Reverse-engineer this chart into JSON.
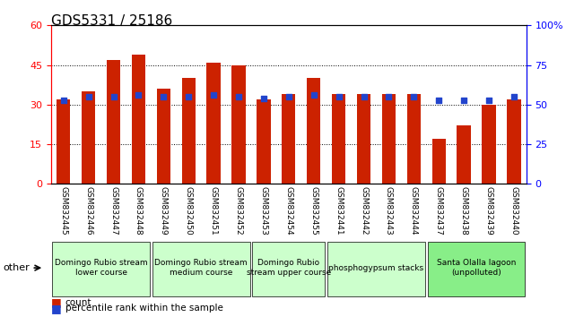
{
  "title": "GDS5331 / 25186",
  "samples": [
    "GSM832445",
    "GSM832446",
    "GSM832447",
    "GSM832448",
    "GSM832449",
    "GSM832450",
    "GSM832451",
    "GSM832452",
    "GSM832453",
    "GSM832454",
    "GSM832455",
    "GSM832441",
    "GSM832442",
    "GSM832443",
    "GSM832444",
    "GSM832437",
    "GSM832438",
    "GSM832439",
    "GSM832440"
  ],
  "counts": [
    32,
    35,
    47,
    49,
    36,
    40,
    46,
    45,
    32,
    34,
    40,
    34,
    34,
    34,
    34,
    17,
    22,
    30,
    32
  ],
  "percentiles": [
    53,
    55,
    55,
    56,
    55,
    55,
    56,
    55,
    54,
    55,
    56,
    55,
    55,
    55,
    55,
    53,
    53,
    53,
    55
  ],
  "bar_color": "#cc2200",
  "dot_color": "#2244cc",
  "ylim_left": [
    0,
    60
  ],
  "ylim_right": [
    0,
    100
  ],
  "yticks_left": [
    0,
    15,
    30,
    45,
    60
  ],
  "yticks_right": [
    0,
    25,
    50,
    75,
    100
  ],
  "groups": [
    {
      "label": "Domingo Rubio stream\nlower course",
      "start": 0,
      "end": 4,
      "color": "#ccffcc"
    },
    {
      "label": "Domingo Rubio stream\nmedium course",
      "start": 4,
      "end": 8,
      "color": "#ccffcc"
    },
    {
      "label": "Domingo Rubio\nstream upper course",
      "start": 8,
      "end": 11,
      "color": "#ccffcc"
    },
    {
      "label": "phosphogypsum stacks",
      "start": 11,
      "end": 15,
      "color": "#ccffcc"
    },
    {
      "label": "Santa Olalla lagoon\n(unpolluted)",
      "start": 15,
      "end": 19,
      "color": "#88ee88"
    }
  ],
  "legend_count_label": "count",
  "legend_pct_label": "percentile rank within the sample",
  "other_label": "other"
}
